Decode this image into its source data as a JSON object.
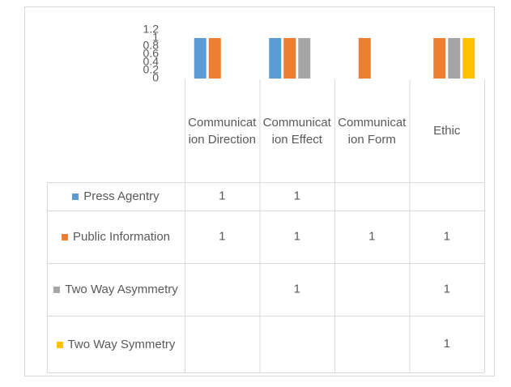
{
  "chart_data": {
    "type": "bar",
    "categories": [
      "Communication Direction",
      "Communication Effect",
      "Communication Form",
      "Ethic"
    ],
    "series": [
      {
        "name": "Press Agentry",
        "color": "#5b9bd5",
        "values": [
          1,
          1,
          null,
          null
        ]
      },
      {
        "name": "Public Information",
        "color": "#ed7d31",
        "values": [
          1,
          1,
          1,
          1
        ]
      },
      {
        "name": "Two Way Asymmetry",
        "color": "#a5a5a5",
        "values": [
          null,
          1,
          null,
          1
        ]
      },
      {
        "name": "Two Way Symmetry",
        "color": "#ffc000",
        "values": [
          null,
          null,
          null,
          1
        ]
      }
    ],
    "ylim": [
      0,
      1.2
    ],
    "yticks": [
      0,
      0.2,
      0.4,
      0.6,
      0.8,
      1,
      1.2
    ],
    "grid": false,
    "data_table": true
  }
}
